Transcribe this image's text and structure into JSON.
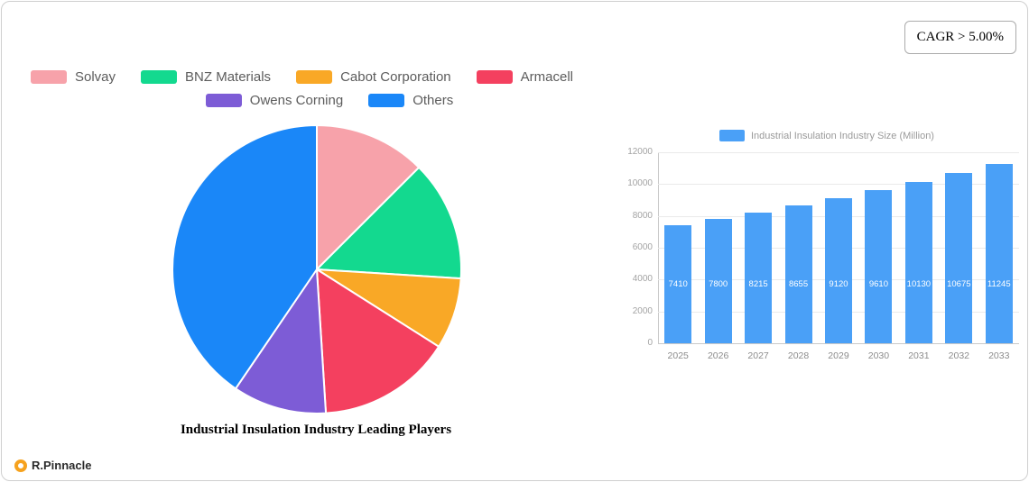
{
  "cagr_badge": {
    "label": "CAGR > 5.00%"
  },
  "brand": {
    "name": "R.Pinnacle"
  },
  "chart_data": [
    {
      "type": "pie",
      "title": "Industrial Insulation Industry Leading Players",
      "labels": [
        "Solvay",
        "BNZ Materials",
        "Cabot Corporation",
        "Armacell",
        "Owens Corning",
        "Others"
      ],
      "values": [
        12.5,
        13.5,
        8,
        15,
        10.5,
        40.5
      ],
      "colors": [
        "#F7A2AA",
        "#13D98F",
        "#F9A826",
        "#F4405F",
        "#7D5CD6",
        "#1A87F8"
      ],
      "legend_position": "top",
      "legend_rows": [
        [
          "Solvay",
          "BNZ Materials",
          "Cabot Corporation",
          "Armacell"
        ],
        [
          "Owens Corning",
          "Others"
        ]
      ]
    },
    {
      "type": "bar",
      "legend": [
        "Industrial Insulation Industry Size (Million)"
      ],
      "categories": [
        "2025",
        "2026",
        "2027",
        "2028",
        "2029",
        "2030",
        "2031",
        "2032",
        "2033"
      ],
      "values": [
        7410,
        7800,
        8215,
        8655,
        9120,
        9610,
        10130,
        10675,
        11245
      ],
      "bar_color": "#4AA0F7",
      "ylim": [
        0,
        12000
      ],
      "y_ticks": [
        0,
        2000,
        4000,
        6000,
        8000,
        10000,
        12000
      ],
      "grid": true,
      "legend_position": "top"
    }
  ]
}
